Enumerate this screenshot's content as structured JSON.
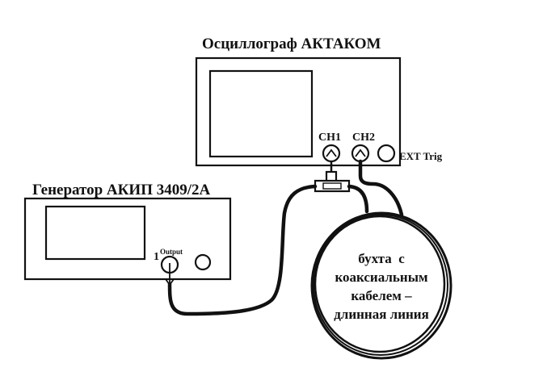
{
  "oscilloscope": {
    "title": "Осциллограф АКТАКОМ",
    "ch1_label": "CH1",
    "ch2_label": "CH2",
    "ext_label": "EXT Trig"
  },
  "generator": {
    "title": "Генератор АКИП 3409/2А",
    "output_number": "1",
    "output_label": "Output"
  },
  "coil": {
    "lines": [
      "бухта  с",
      "коаксиальным",
      "кабелем –",
      "длинная линия"
    ]
  },
  "colors": {
    "ink": "#111111",
    "background": "#ffffff"
  }
}
